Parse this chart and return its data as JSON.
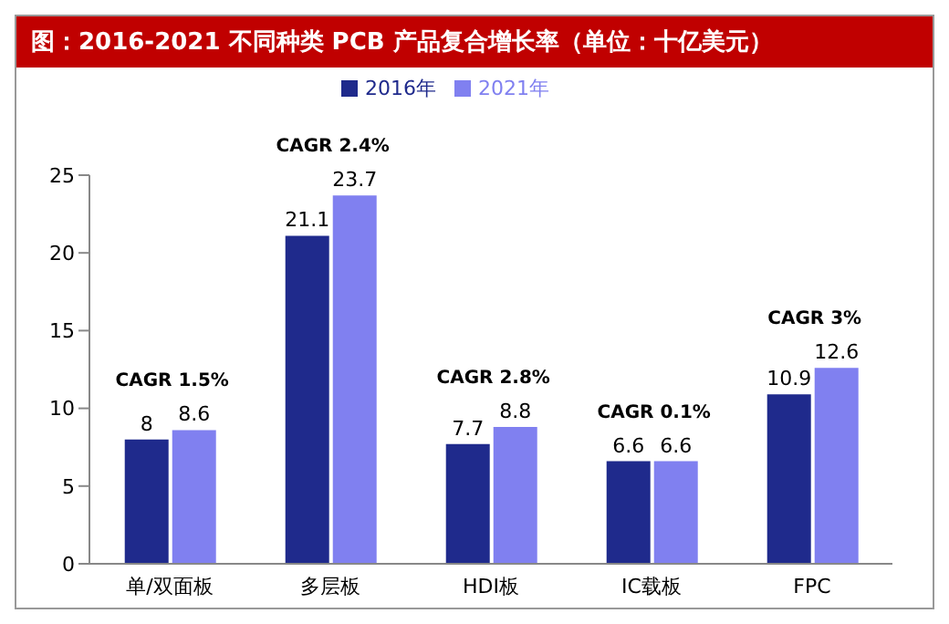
{
  "chart_data": {
    "type": "bar",
    "title": "图：2016-2021 不同种类 PCB 产品复合增长率（单位：十亿美元）",
    "categories": [
      "单/双面板",
      "多层板",
      "HDI板",
      "IC载板",
      "FPC"
    ],
    "series": [
      {
        "name": "2016年",
        "color": "#1f2a8c",
        "values": [
          8,
          21.1,
          7.7,
          6.6,
          10.9
        ]
      },
      {
        "name": "2021年",
        "color": "#8080f0",
        "values": [
          8.6,
          23.7,
          8.8,
          6.6,
          12.6
        ]
      }
    ],
    "annotations": [
      "CAGR 1.5%",
      "CAGR 2.4%",
      "CAGR 2.8%",
      "CAGR 0.1%",
      "CAGR 3%"
    ],
    "ylim": [
      0,
      25
    ],
    "yticks": [
      0,
      5,
      10,
      15,
      20,
      25
    ],
    "grid": false,
    "legend": "top",
    "data_labels": true
  }
}
